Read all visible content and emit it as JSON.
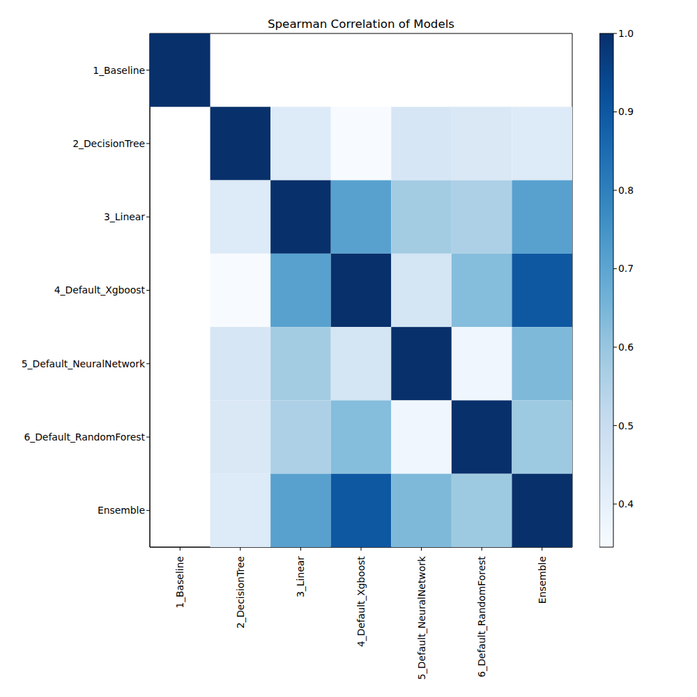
{
  "chart_data": {
    "type": "heatmap",
    "title": "Spearman Correlation of Models",
    "categories": [
      "1_Baseline",
      "2_DecisionTree",
      "3_Linear",
      "4_Default_Xgboost",
      "5_Default_NeuralNetwork",
      "6_Default_RandomForest",
      "Ensemble"
    ],
    "cells": [
      [
        1.0,
        null,
        null,
        null,
        null,
        null,
        null
      ],
      [
        null,
        1.0,
        0.43,
        0.345,
        0.45,
        0.44,
        0.43
      ],
      [
        null,
        0.43,
        1.0,
        0.71,
        0.58,
        0.56,
        0.71
      ],
      [
        null,
        0.345,
        0.71,
        1.0,
        0.46,
        0.63,
        0.9
      ],
      [
        null,
        0.45,
        0.58,
        0.46,
        1.0,
        0.37,
        0.64
      ],
      [
        null,
        0.44,
        0.56,
        0.63,
        0.37,
        1.0,
        0.59
      ],
      [
        null,
        0.43,
        0.71,
        0.9,
        0.64,
        0.59,
        1.0
      ]
    ],
    "color": "Blues",
    "color_range": [
      0.345,
      1.0
    ],
    "color_ticks": [
      0.4,
      0.5,
      0.6,
      0.7,
      0.8,
      0.9,
      {
        "value": 1.0,
        "label": "1.0"
      }
    ]
  }
}
